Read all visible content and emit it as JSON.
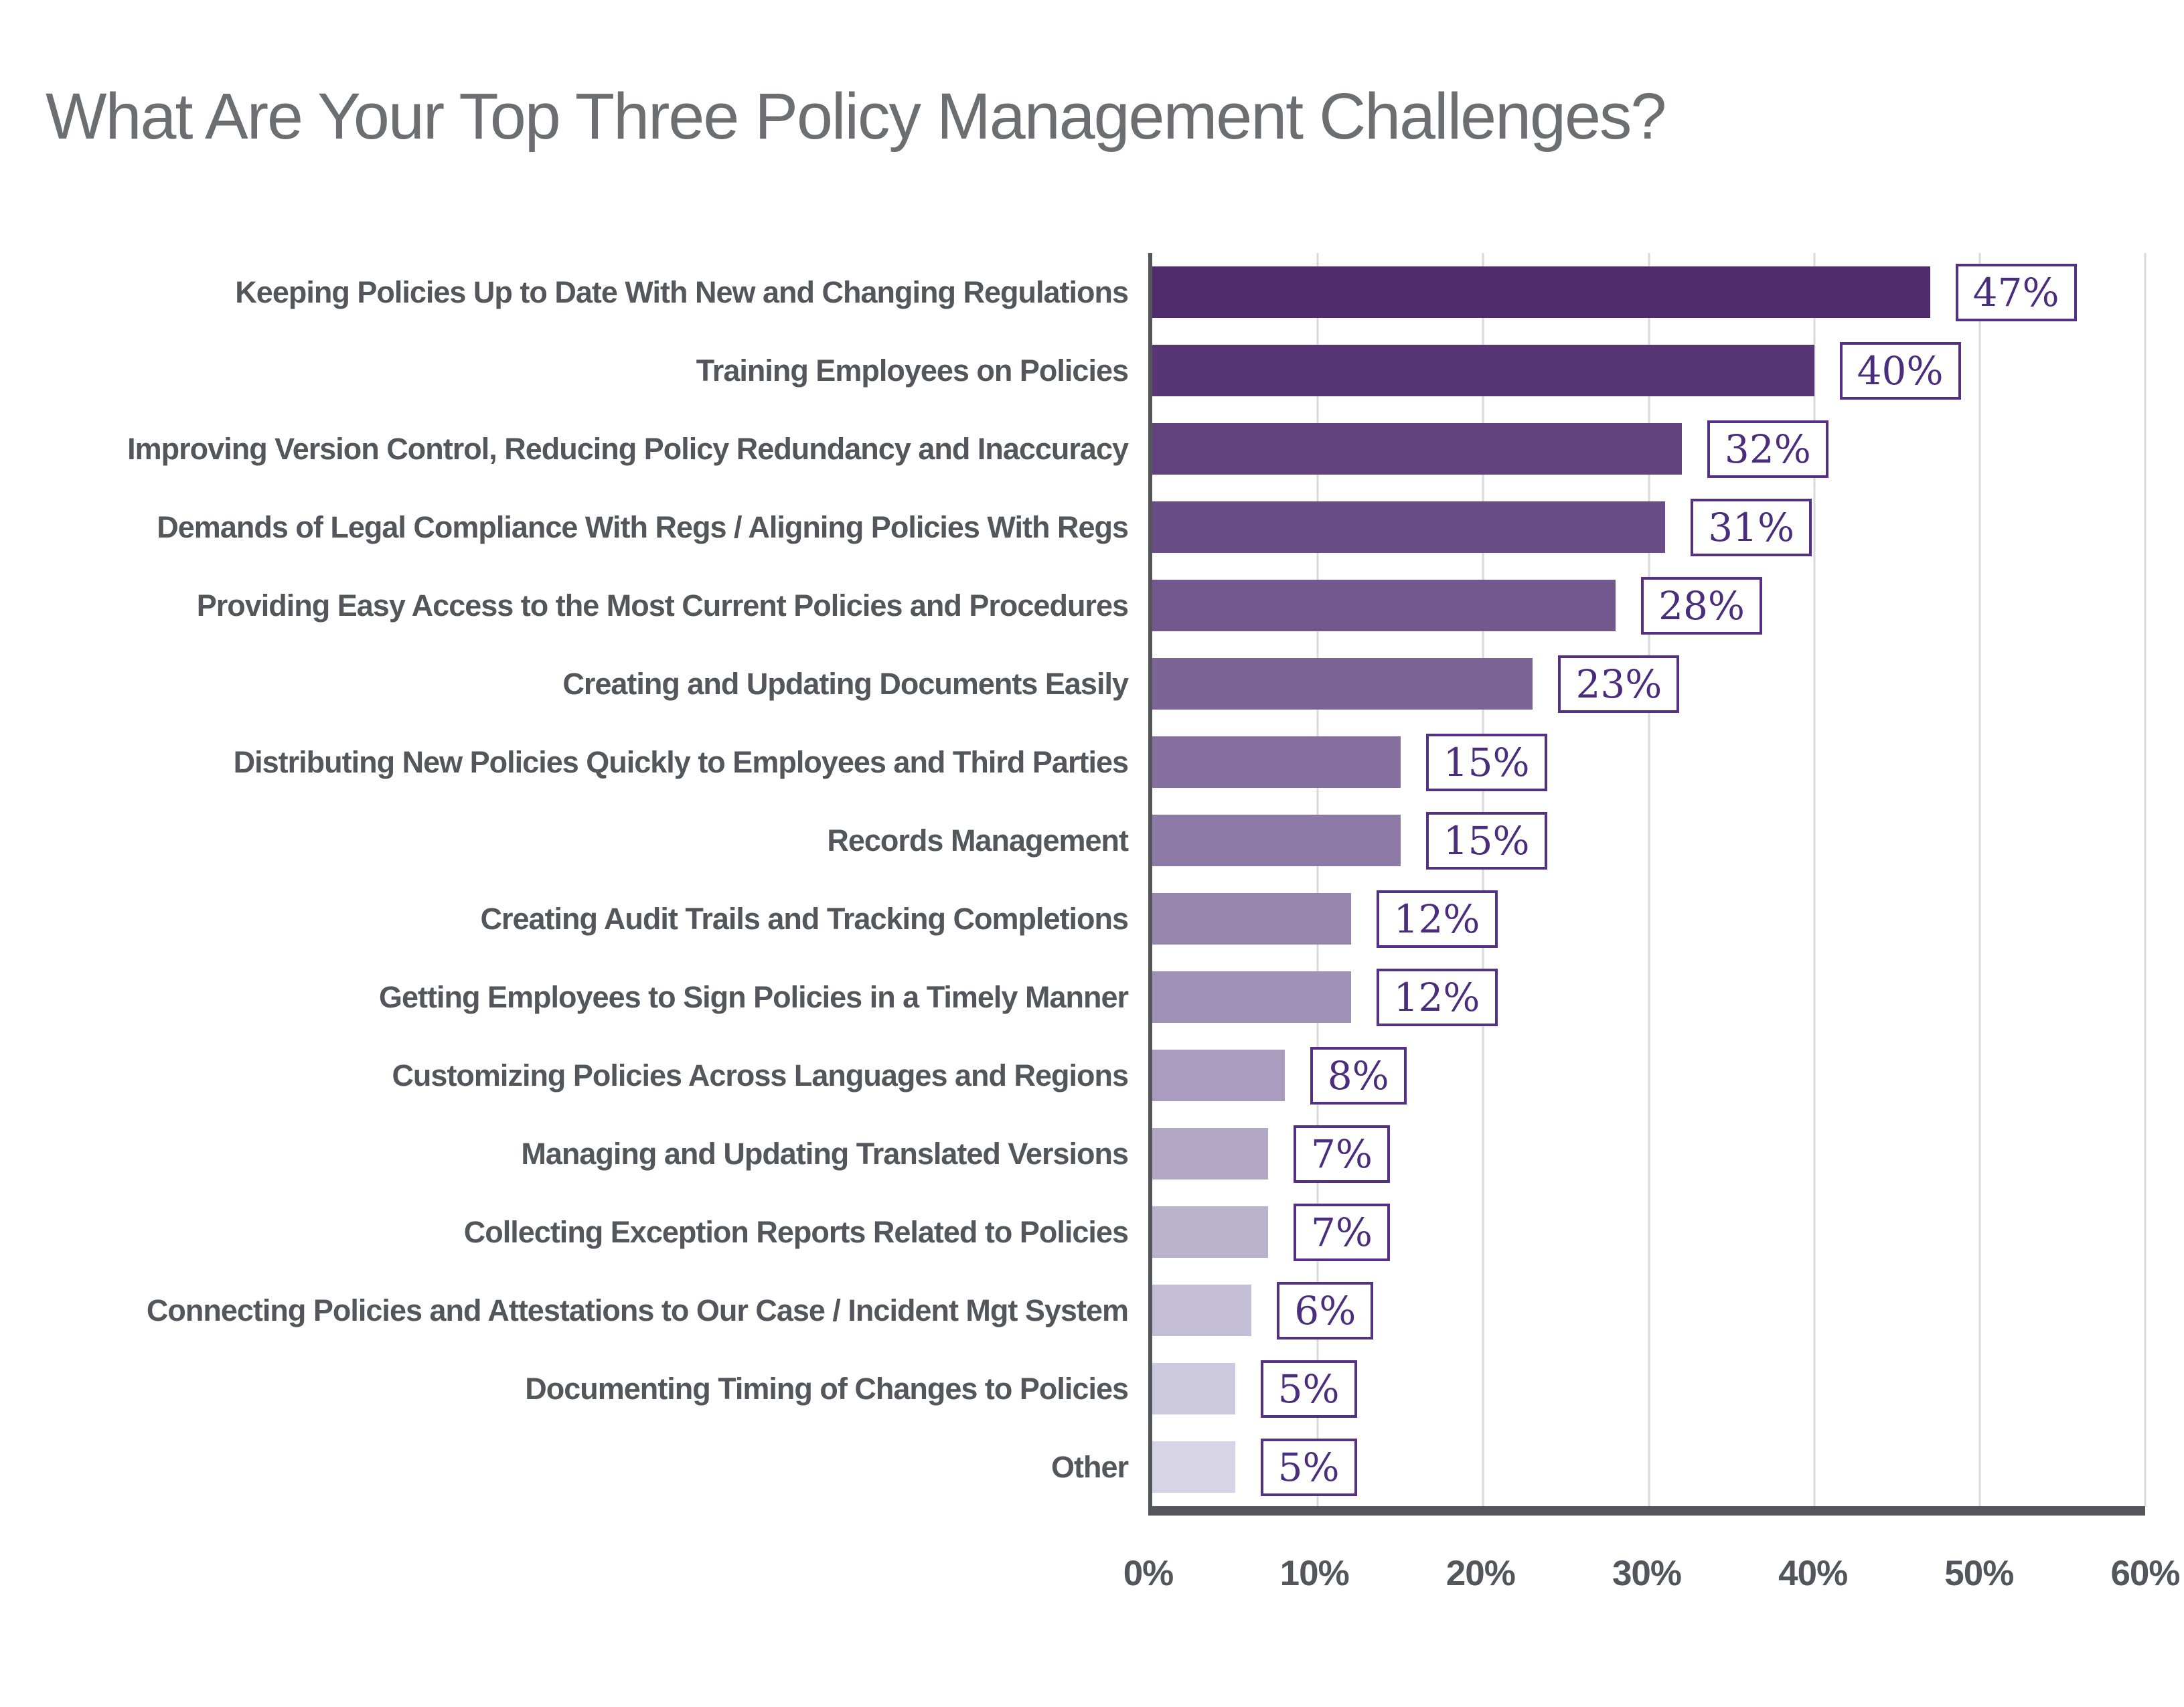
{
  "chart_data": {
    "type": "bar",
    "orientation": "horizontal",
    "title": "What Are Your Top Three Policy Management Challenges?",
    "categories": [
      "Keeping Policies Up to Date With New and Changing Regulations",
      "Training Employees on Policies",
      "Improving Version Control, Reducing Policy Redundancy and Inaccuracy",
      "Demands of Legal Compliance With Regs / Aligning Policies With Regs",
      "Providing Easy Access to the Most Current Policies and Procedures",
      "Creating and Updating Documents Easily",
      "Distributing New Policies Quickly to Employees and Third Parties",
      "Records Management",
      "Creating Audit Trails and Tracking Completions",
      "Getting Employees to Sign Policies in a Timely Manner",
      "Customizing Policies Across Languages and Regions",
      "Managing and Updating Translated Versions",
      "Collecting Exception Reports Related to Policies",
      "Connecting Policies and Attestations to Our Case / Incident Mgt System",
      "Documenting Timing of Changes to Policies",
      "Other"
    ],
    "values": [
      47,
      40,
      32,
      31,
      28,
      23,
      15,
      15,
      12,
      12,
      8,
      7,
      7,
      6,
      5,
      5
    ],
    "value_labels": [
      "47%",
      "40%",
      "32%",
      "31%",
      "28%",
      "23%",
      "15%",
      "15%",
      "12%",
      "12%",
      "8%",
      "7%",
      "7%",
      "6%",
      "5%",
      "5%"
    ],
    "bar_colors": [
      "#4f2b6e",
      "#583676",
      "#61427e",
      "#6a4d86",
      "#73588e",
      "#7c6496",
      "#856f9e",
      "#8e7aa6",
      "#9786ae",
      "#a091b6",
      "#a99cbe",
      "#b2a8c6",
      "#bbb3ce",
      "#c4bed6",
      "#cdc9de",
      "#d7d4e6"
    ],
    "xlabel": "",
    "ylabel": "",
    "xlim": [
      0,
      60
    ],
    "x_ticks": [
      "0%",
      "10%",
      "20%",
      "30%",
      "40%",
      "50%",
      "60%"
    ],
    "grid": true,
    "legend": false,
    "colors": {
      "title_text": "#6d6e71",
      "category_text": "#55565b",
      "tick_text": "#55565b",
      "axis_line": "#55565b",
      "gridline": "#d9dadc",
      "badge_text": "#4b2d7d",
      "badge_border": "#543184",
      "badge_background": "#ffffff",
      "page_background": "#ffffff"
    }
  }
}
